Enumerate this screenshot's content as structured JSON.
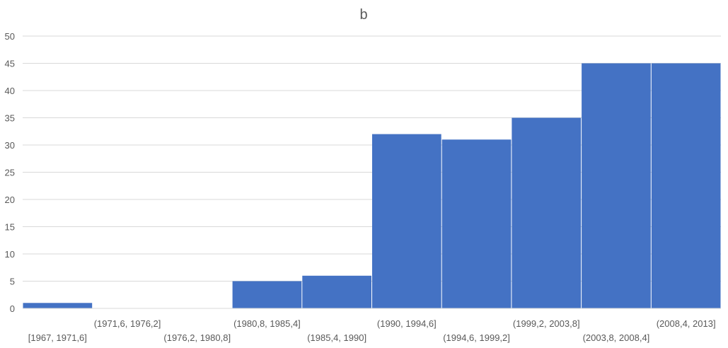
{
  "chart_data": {
    "type": "bar",
    "title": "b",
    "xlabel": "",
    "ylabel": "",
    "ylim": [
      0,
      50
    ],
    "yticks": [
      0,
      5,
      10,
      15,
      20,
      25,
      30,
      35,
      40,
      45,
      50
    ],
    "categories": [
      "[1967, 1971,6]",
      "(1971,6, 1976,2]",
      "(1976,2, 1980,8]",
      "(1980,8, 1985,4]",
      "(1985,4, 1990]",
      "(1990, 1994,6]",
      "(1994,6, 1999,2]",
      "(1999,2, 2003,8]",
      "(2003,8, 2008,4]",
      "(2008,4, 2013]"
    ],
    "values": [
      1,
      0,
      0,
      5,
      6,
      32,
      31,
      35,
      45,
      45
    ],
    "bar_color": "#4472c4",
    "grid": true
  }
}
